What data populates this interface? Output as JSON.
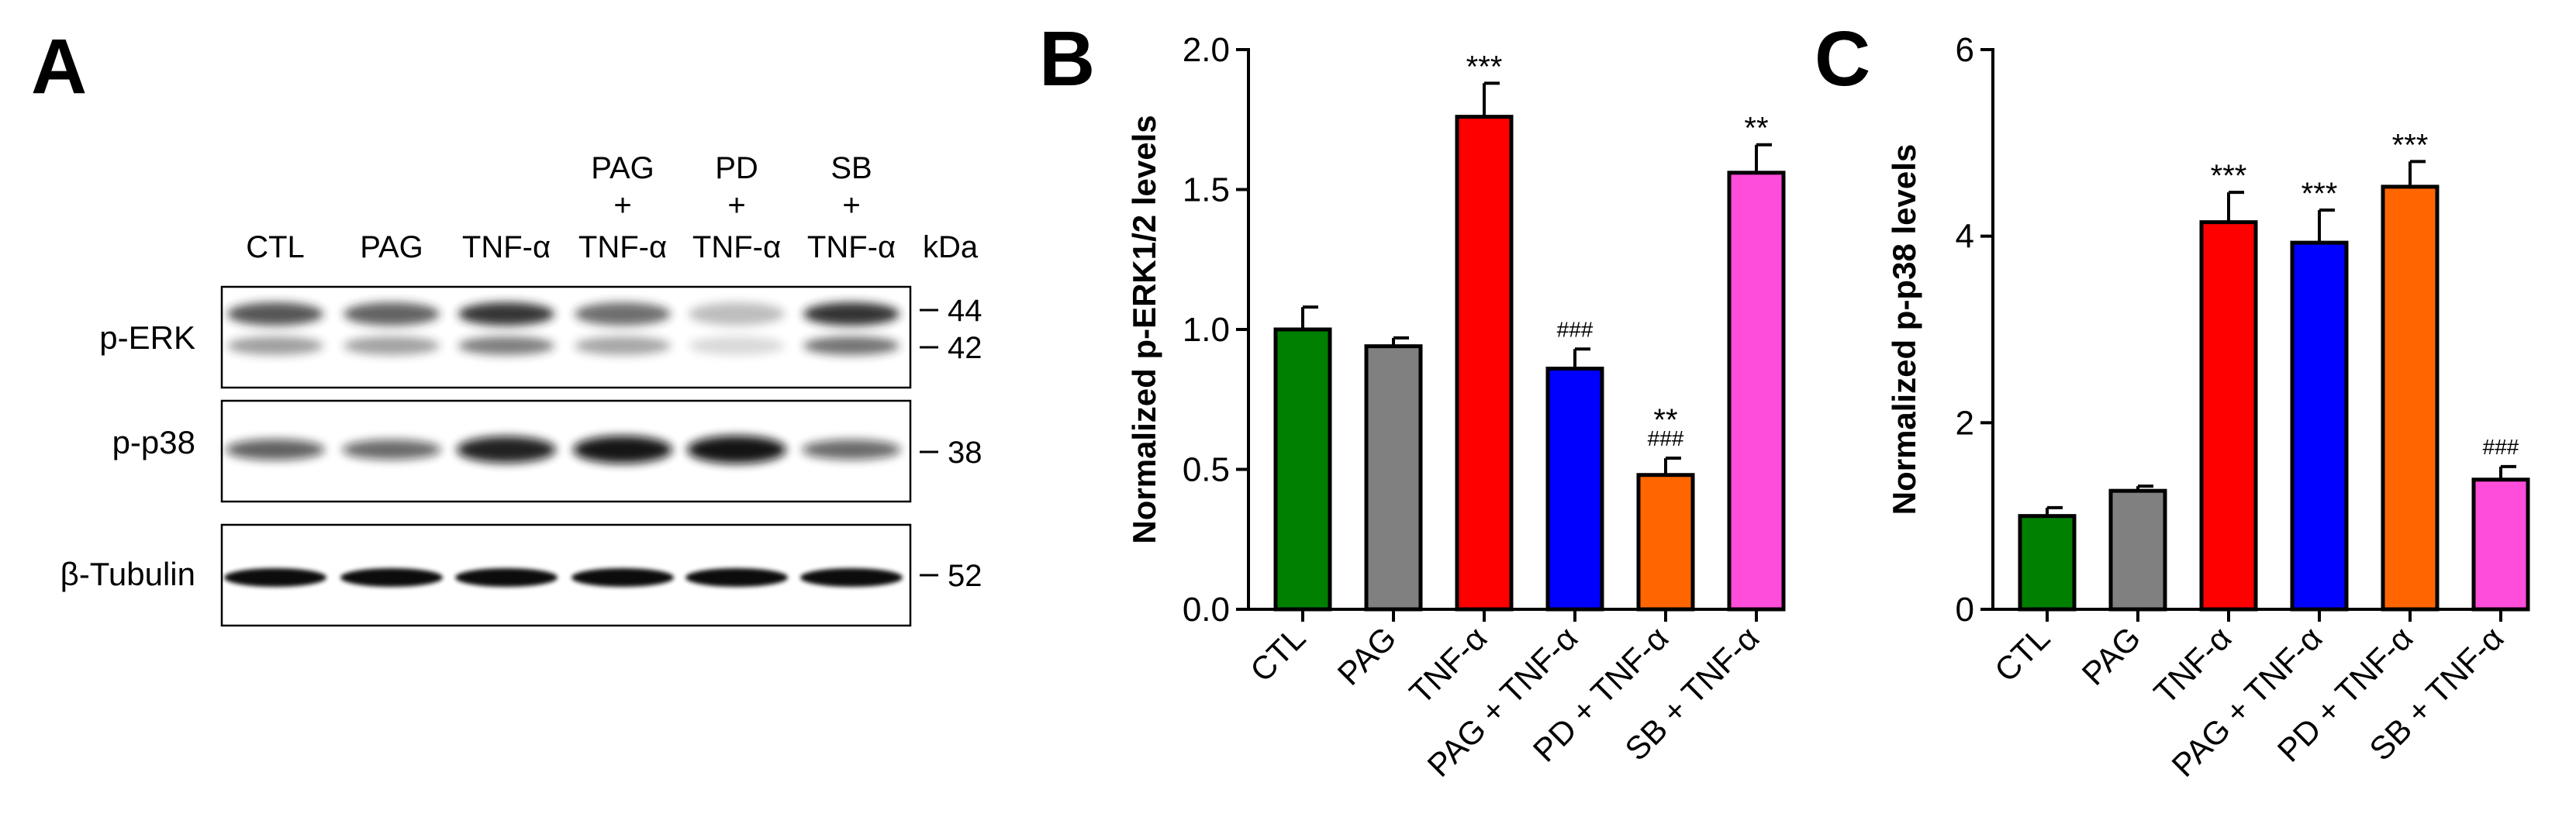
{
  "panels": {
    "A": "A",
    "B": "B",
    "C": "C"
  },
  "blot": {
    "lanes": [
      {
        "line1": "",
        "line2": "",
        "line3": "CTL",
        "erk": [
          0.78,
          0.5
        ],
        "p38": 0.55,
        "tub": 1.0
      },
      {
        "line1": "",
        "line2": "",
        "line3": "PAG",
        "erk": [
          0.7,
          0.48
        ],
        "p38": 0.5,
        "tub": 1.0
      },
      {
        "line1": "",
        "line2": "",
        "line3": "TNF-α",
        "erk": [
          0.98,
          0.75
        ],
        "p38": 0.92,
        "tub": 1.0
      },
      {
        "line1": "PAG",
        "line2": "+",
        "line3": "TNF-α",
        "erk": [
          0.62,
          0.45
        ],
        "p38": 0.98,
        "tub": 1.0
      },
      {
        "line1": "PD",
        "line2": "+",
        "line3": "TNF-α",
        "erk": [
          0.12,
          0.08
        ],
        "p38": 1.0,
        "tub": 1.0
      },
      {
        "line1": "SB",
        "line2": "+",
        "line3": "TNF-α",
        "erk": [
          1.0,
          0.82
        ],
        "p38": 0.5,
        "tub": 1.0
      }
    ],
    "kda_label": "kDa",
    "rows": [
      {
        "label": "p-ERK",
        "markers": [
          "44",
          "42"
        ]
      },
      {
        "label": "p-p38",
        "markers": [
          "38"
        ]
      },
      {
        "label": "β-Tubulin",
        "markers": [
          "52"
        ]
      }
    ]
  },
  "chart_data": [
    {
      "type": "bar",
      "title": "",
      "xlabel": "",
      "ylabel": "Normalized p-ERK1/2 levels",
      "categories": [
        "CTL",
        "PAG",
        "TNF-α",
        "PAG + TNF-α",
        "PD + TNF-α",
        "SB + TNF-α"
      ],
      "values": [
        1.0,
        0.94,
        1.76,
        0.86,
        0.48,
        1.56
      ],
      "errors": [
        0.08,
        0.03,
        0.12,
        0.07,
        0.06,
        0.1
      ],
      "colors": [
        "#008000",
        "#808080",
        "#ff0000",
        "#0000ff",
        "#ff6600",
        "#ff4ddb"
      ],
      "annotations": [
        [
          "",
          ""
        ],
        [
          "",
          ""
        ],
        [
          "***",
          ""
        ],
        [
          "",
          "###"
        ],
        [
          "**",
          "###"
        ],
        [
          "**",
          ""
        ]
      ],
      "ylim": [
        0,
        2.0
      ],
      "yticks": [
        0.0,
        0.5,
        1.0,
        1.5,
        2.0
      ],
      "ytick_labels": [
        "0.0",
        "0.5",
        "1.0",
        "1.5",
        "2.0"
      ]
    },
    {
      "type": "bar",
      "title": "",
      "xlabel": "",
      "ylabel": "Normalized p-p38 levels",
      "categories": [
        "CTL",
        "PAG",
        "TNF-α",
        "PAG + TNF-α",
        "PD + TNF-α",
        "SB + TNF-α"
      ],
      "values": [
        1.0,
        1.27,
        4.15,
        3.93,
        4.53,
        1.39
      ],
      "errors": [
        0.09,
        0.05,
        0.32,
        0.35,
        0.27,
        0.14
      ],
      "colors": [
        "#008000",
        "#808080",
        "#ff0000",
        "#0000ff",
        "#ff6600",
        "#ff4ddb"
      ],
      "annotations": [
        [
          "",
          ""
        ],
        [
          "",
          ""
        ],
        [
          "***",
          ""
        ],
        [
          "***",
          ""
        ],
        [
          "***",
          ""
        ],
        [
          "",
          "###"
        ]
      ],
      "ylim": [
        0,
        6
      ],
      "yticks": [
        0,
        2,
        4,
        6
      ],
      "ytick_labels": [
        "0",
        "2",
        "4",
        "6"
      ]
    }
  ]
}
